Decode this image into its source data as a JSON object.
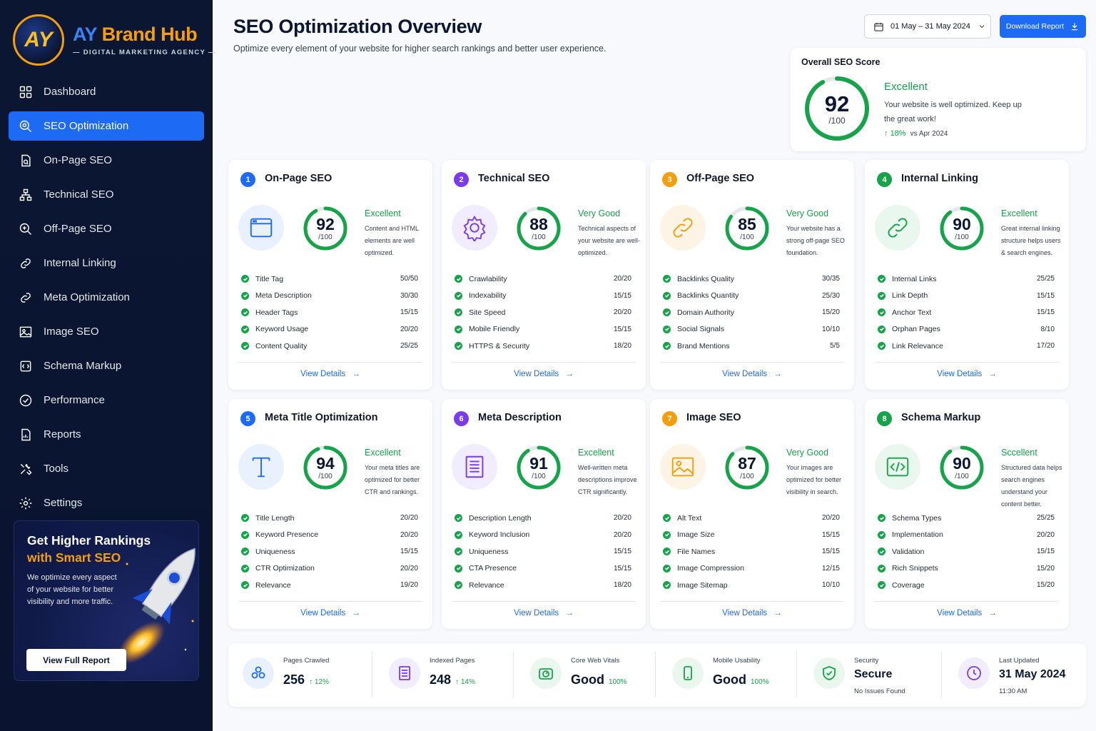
{
  "brand": {
    "logo_mark": "AY",
    "name_part1": "AY",
    "name_part2": "Brand Hub",
    "tagline": "— DIGITAL MARKETING AGENCY —"
  },
  "nav": [
    {
      "label": "Dashboard",
      "icon": "grid-icon",
      "active": false
    },
    {
      "label": "SEO Optimization",
      "icon": "search-gear-icon",
      "active": true
    },
    {
      "label": "On-Page SEO",
      "icon": "document-icon",
      "active": false
    },
    {
      "label": "Technical SEO",
      "icon": "hierarchy-icon",
      "active": false
    },
    {
      "label": "Off-Page SEO",
      "icon": "search-icon",
      "active": false
    },
    {
      "label": "Internal Linking",
      "icon": "link-icon",
      "active": false
    },
    {
      "label": "Meta Optimization",
      "icon": "tag-icon",
      "active": false
    },
    {
      "label": "Image SEO",
      "icon": "image-icon",
      "active": false
    },
    {
      "label": "Schema Markup",
      "icon": "schema-icon",
      "active": false
    },
    {
      "label": "Performance",
      "icon": "gauge-icon",
      "active": false
    },
    {
      "label": "Reports",
      "icon": "report-icon",
      "active": false
    },
    {
      "label": "Tools",
      "icon": "tools-icon",
      "active": false
    },
    {
      "label": "Settings",
      "icon": "gear-icon",
      "active": false
    }
  ],
  "promo": {
    "title_line1": "Get Higher Rankings",
    "title_line2": "with Smart SEO",
    "desc": "We optimize every aspect of your website for better visibility and more traffic.",
    "button": "View Full Report"
  },
  "header": {
    "title": "SEO Optimization Overview",
    "subtitle": "Optimize every element of your website for higher search rankings and better user experience.",
    "date_range": "01 May – 31 May 2024",
    "download": "Download Report"
  },
  "overall": {
    "title": "Overall SEO Score",
    "score": 92,
    "score_text": "92",
    "max_text": "/100",
    "rating": "Excellent",
    "desc": "Your website is well optimized. Keep up the great work!",
    "trend": "18%",
    "trend_vs": "vs Apr 2024"
  },
  "colors": {
    "accent": "#1d6af5",
    "success": "#16a34a",
    "sidebar": "#0b1633",
    "blue": "#1d6af5",
    "purple": "#7c3aed",
    "orange": "#f59e0b",
    "green": "#16a34a"
  },
  "cards": [
    {
      "num": "1",
      "title": "On-Page SEO",
      "score": 92,
      "score_text": "92",
      "max_text": "/100",
      "rating": "Excellent",
      "desc": "Content and HTML elements are well optimized.",
      "icon": "browser-window-icon",
      "color": "#1d6af5",
      "bg": "#eaf1fe",
      "link": "View Details",
      "metrics": [
        {
          "label": "Title Tag",
          "value": "50/50"
        },
        {
          "label": "Meta Description",
          "value": "30/30"
        },
        {
          "label": "Header Tags",
          "value": "15/15"
        },
        {
          "label": "Keyword Usage",
          "value": "20/20"
        },
        {
          "label": "Content Quality",
          "value": "25/25"
        }
      ]
    },
    {
      "num": "2",
      "title": "Technical SEO",
      "score": 88,
      "score_text": "88",
      "max_text": "/100",
      "rating": "Very Good",
      "desc": "Technical aspects of your website are well-optimized.",
      "icon": "gear-icon",
      "color": "#7c3aed",
      "bg": "#f1ecfe",
      "link": "View Details",
      "metrics": [
        {
          "label": "Crawlability",
          "value": "20/20"
        },
        {
          "label": "Indexability",
          "value": "15/15"
        },
        {
          "label": "Site Speed",
          "value": "20/20"
        },
        {
          "label": "Mobile Friendly",
          "value": "15/15"
        },
        {
          "label": "HTTPS & Security",
          "value": "18/20"
        }
      ]
    },
    {
      "num": "3",
      "title": "Off-Page SEO",
      "score": 85,
      "score_text": "85",
      "max_text": "/100",
      "rating": "Very Good",
      "desc": "Your website has a strong off-page SEO foundation.",
      "icon": "chain-link-icon",
      "color": "#f59e0b",
      "bg": "#fef4e6",
      "link": "View Details",
      "metrics": [
        {
          "label": "Backlinks Quality",
          "value": "30/35"
        },
        {
          "label": "Backlinks Quantity",
          "value": "25/30"
        },
        {
          "label": "Domain Authority",
          "value": "15/20"
        },
        {
          "label": "Social Signals",
          "value": "10/10"
        },
        {
          "label": "Brand Mentions",
          "value": "5/5"
        }
      ]
    },
    {
      "num": "4",
      "title": "Internal Linking",
      "score": 90,
      "score_text": "90",
      "max_text": "/100",
      "rating": "Excellent",
      "desc": "Great internal linking structure helps users & search engines.",
      "icon": "chain-link-icon",
      "color": "#16a34a",
      "bg": "#e9f7ee",
      "link": "View Details",
      "metrics": [
        {
          "label": "Internal Links",
          "value": "25/25"
        },
        {
          "label": "Link Depth",
          "value": "15/15"
        },
        {
          "label": "Anchor Text",
          "value": "15/15"
        },
        {
          "label": "Orphan Pages",
          "value": "8/10"
        },
        {
          "label": "Link Relevance",
          "value": "17/20"
        }
      ]
    },
    {
      "num": "5",
      "title": "Meta Title Optimization",
      "score": 94,
      "score_text": "94",
      "max_text": "/100",
      "rating": "Excellent",
      "desc": "Your meta titles are optimized for better CTR and rankings.",
      "icon": "text-t-icon",
      "color": "#1d6af5",
      "bg": "#eaf1fe",
      "link": "View Details",
      "metrics": [
        {
          "label": "Title Length",
          "value": "20/20"
        },
        {
          "label": "Keyword Presence",
          "value": "20/20"
        },
        {
          "label": "Uniqueness",
          "value": "15/15"
        },
        {
          "label": "CTR Optimization",
          "value": "20/20"
        },
        {
          "label": "Relevance",
          "value": "19/20"
        }
      ]
    },
    {
      "num": "6",
      "title": "Meta Description",
      "score": 91,
      "score_text": "91",
      "max_text": "/100",
      "rating": "Excellent",
      "desc": "Well-written meta descriptions improve CTR significantly.",
      "icon": "document-lines-icon",
      "color": "#7c3aed",
      "bg": "#f1ecfe",
      "link": "View Details",
      "metrics": [
        {
          "label": "Description Length",
          "value": "20/20"
        },
        {
          "label": "Keyword Inclusion",
          "value": "20/20"
        },
        {
          "label": "Uniqueness",
          "value": "15/15"
        },
        {
          "label": "CTA Presence",
          "value": "15/15"
        },
        {
          "label": "Relevance",
          "value": "18/20"
        }
      ]
    },
    {
      "num": "7",
      "title": "Image SEO",
      "score": 87,
      "score_text": "87",
      "max_text": "/100",
      "rating": "Very Good",
      "desc": "Your images are optimized for better visibility in search.",
      "icon": "image-icon",
      "color": "#f59e0b",
      "bg": "#fef4e6",
      "link": "View Details",
      "metrics": [
        {
          "label": "Alt Text",
          "value": "20/20"
        },
        {
          "label": "Image Size",
          "value": "15/15"
        },
        {
          "label": "File Names",
          "value": "15/15"
        },
        {
          "label": "Image Compression",
          "value": "12/15"
        },
        {
          "label": "Image Sitemap",
          "value": "10/10"
        }
      ]
    },
    {
      "num": "8",
      "title": "Schema Markup",
      "score": 90,
      "score_text": "90",
      "max_text": "/100",
      "rating": "Sccellent",
      "desc": "Structured data helps search engines understand your content better.",
      "icon": "code-icon",
      "color": "#16a34a",
      "bg": "#e9f7ee",
      "link": "View Details",
      "metrics": [
        {
          "label": "Schema Types",
          "value": "25/25"
        },
        {
          "label": "Implementation",
          "value": "20/20"
        },
        {
          "label": "Validation",
          "value": "15/15"
        },
        {
          "label": "Rich Snippets",
          "value": "15/20"
        },
        {
          "label": "Coverage",
          "value": "15/20"
        }
      ]
    }
  ],
  "stats": [
    {
      "label": "Pages Crawled",
      "value": "256",
      "delta": "12%",
      "note": "",
      "icon": "network-icon",
      "color": "#1d6af5",
      "bg": "#eaf1fe"
    },
    {
      "label": "Indexed Pages",
      "value": "248",
      "delta": "14%",
      "note": "",
      "icon": "document-list-icon",
      "color": "#7c3aed",
      "bg": "#f1ecfe"
    },
    {
      "label": "Core Web Vitals",
      "value": "Good",
      "delta": "100%",
      "note": "",
      "icon": "speedometer-icon",
      "color": "#16a34a",
      "bg": "#e9f7ee"
    },
    {
      "label": "Mobile Usability",
      "value": "Good",
      "delta": "100%",
      "note": "",
      "icon": "mobile-icon",
      "color": "#16a34a",
      "bg": "#e9f7ee"
    },
    {
      "label": "Security",
      "value": "Secure",
      "delta": "",
      "note": "No Issues Found",
      "icon": "shield-check-icon",
      "color": "#16a34a",
      "bg": "#e9f7ee"
    },
    {
      "label": "Last Updated",
      "value": "31 May 2024",
      "delta": "",
      "note": "11:30 AM",
      "icon": "clock-icon",
      "color": "#7c3aed",
      "bg": "#f1ecfe"
    }
  ]
}
